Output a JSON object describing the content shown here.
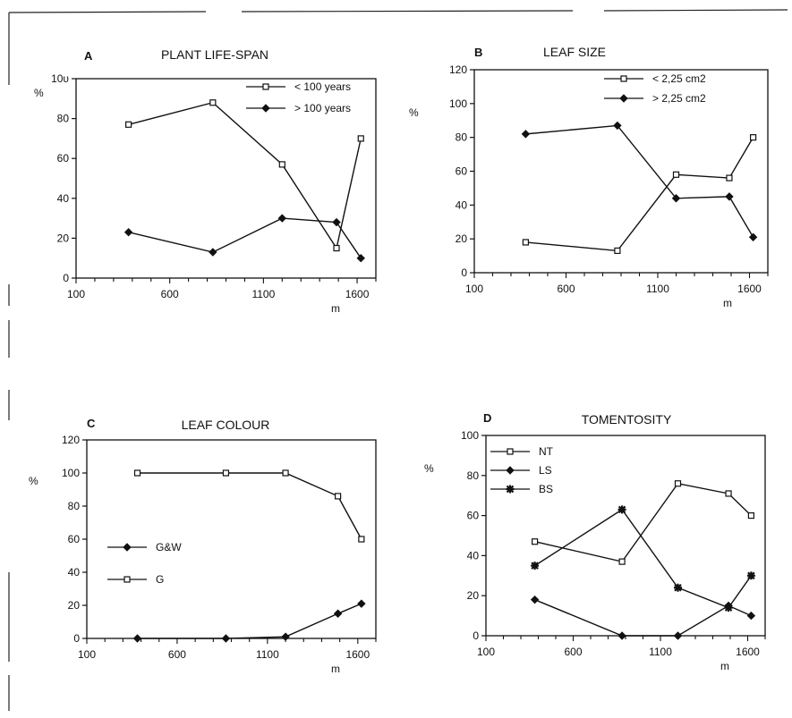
{
  "chart_data": [
    {
      "type": "line",
      "panel": "A",
      "title": "PLANT LIFE-SPAN",
      "ylabel": "%",
      "xlabel": "m",
      "ylim": [
        0,
        100
      ],
      "yticks": [
        0,
        20,
        40,
        60,
        80,
        100
      ],
      "ytick_labels": [
        "0",
        "20",
        "40",
        "60",
        "80",
        "10υ"
      ],
      "xlim": [
        100,
        1700
      ],
      "xticks": [
        100,
        600,
        1100,
        1600
      ],
      "xtick_labels": [
        "100",
        "600",
        "1100",
        "1600"
      ],
      "legend_position": "top-right",
      "series": [
        {
          "name": "< 100 years",
          "marker": "square",
          "x": [
            380,
            830,
            1200,
            1490,
            1620
          ],
          "y": [
            77,
            88,
            57,
            15,
            70
          ]
        },
        {
          "name": "> 100 years",
          "marker": "diamond",
          "x": [
            380,
            830,
            1200,
            1490,
            1620
          ],
          "y": [
            23,
            13,
            30,
            28,
            10
          ]
        }
      ]
    },
    {
      "type": "line",
      "panel": "B",
      "title": "LEAF SIZE",
      "ylabel": "%",
      "xlabel": "m",
      "ylim": [
        0,
        120
      ],
      "yticks": [
        0,
        20,
        40,
        60,
        80,
        100,
        120
      ],
      "ytick_labels": [
        "0",
        "20",
        "40",
        "60",
        "80",
        "100",
        "120"
      ],
      "xlim": [
        100,
        1700
      ],
      "xticks": [
        100,
        600,
        1100,
        1600
      ],
      "xtick_labels": [
        "100",
        "600",
        "1100",
        "1600"
      ],
      "legend_position": "top-right",
      "series": [
        {
          "name": "< 2,25 cm2",
          "marker": "square",
          "x": [
            380,
            880,
            1200,
            1490,
            1620
          ],
          "y": [
            18,
            13,
            58,
            56,
            80
          ]
        },
        {
          "name": "> 2,25 cm2",
          "marker": "diamond",
          "x": [
            380,
            880,
            1200,
            1490,
            1620
          ],
          "y": [
            82,
            87,
            44,
            45,
            21
          ]
        }
      ]
    },
    {
      "type": "line",
      "panel": "C",
      "title": "LEAF COLOUR",
      "ylabel": "%",
      "xlabel": "m",
      "ylim": [
        0,
        120
      ],
      "yticks": [
        0,
        20,
        40,
        60,
        80,
        100,
        120
      ],
      "ytick_labels": [
        "0",
        "20",
        "40",
        "60",
        "80",
        "100",
        "120"
      ],
      "xlim": [
        100,
        1700
      ],
      "xticks": [
        100,
        600,
        1100,
        1600
      ],
      "xtick_labels": [
        "100",
        "600",
        "1100",
        "1600"
      ],
      "legend_position": "left",
      "series": [
        {
          "name": "G&W",
          "marker": "diamond",
          "x": [
            380,
            870,
            1200,
            1490,
            1620
          ],
          "y": [
            0,
            0,
            1,
            15,
            21
          ]
        },
        {
          "name": "G",
          "marker": "square",
          "x": [
            380,
            870,
            1200,
            1490,
            1620
          ],
          "y": [
            100,
            100,
            100,
            86,
            60
          ]
        }
      ]
    },
    {
      "type": "line",
      "panel": "D",
      "title": "TOMENTOSITY",
      "ylabel": "%",
      "xlabel": "m",
      "ylim": [
        0,
        100
      ],
      "yticks": [
        0,
        20,
        40,
        60,
        80,
        100
      ],
      "ytick_labels": [
        "0",
        "20",
        "40",
        "60",
        "80",
        "100"
      ],
      "xlim": [
        100,
        1700
      ],
      "xticks": [
        100,
        600,
        1100,
        1600
      ],
      "xtick_labels": [
        "100",
        "600",
        "1100",
        "1600"
      ],
      "legend_position": "top-left",
      "series": [
        {
          "name": "NT",
          "marker": "square",
          "x": [
            380,
            880,
            1200,
            1490,
            1620
          ],
          "y": [
            47,
            37,
            76,
            71,
            60
          ]
        },
        {
          "name": "LS",
          "marker": "diamond",
          "x": [
            380,
            880,
            1200,
            1490,
            1620
          ],
          "y": [
            18,
            0,
            0,
            15,
            10
          ]
        },
        {
          "name": "BS",
          "marker": "star",
          "x": [
            380,
            880,
            1200,
            1490,
            1620
          ],
          "y": [
            35,
            63,
            24,
            14,
            30
          ]
        }
      ]
    }
  ]
}
